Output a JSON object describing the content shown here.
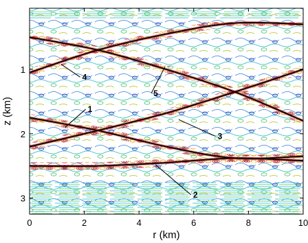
{
  "chart_data": {
    "type": "contour",
    "title": "",
    "xlabel": "r (km)",
    "ylabel": "z (km)",
    "xlim": [
      0,
      10
    ],
    "ylim": [
      3.25,
      0.05
    ],
    "y_reversed": true,
    "xticks": [
      0,
      2,
      4,
      6,
      8,
      10
    ],
    "yticks": [
      1,
      2,
      3
    ],
    "grid": false,
    "legend": "none",
    "contour_palette": [
      "#0b2aa8",
      "#2f7fe0",
      "#1cb7c9",
      "#3fbf5a",
      "#b0c21e",
      "#e39a1a",
      "#d2281e",
      "#8c0c0c"
    ],
    "curves": [
      {
        "id": "c1",
        "points": [
          [
            0,
            0.5
          ],
          [
            2.5,
            0.7
          ],
          [
            5,
            1.0
          ],
          [
            7.5,
            1.35
          ],
          [
            10,
            1.8
          ]
        ]
      },
      {
        "id": "c2",
        "points": [
          [
            0,
            1.05
          ],
          [
            2.5,
            0.7
          ],
          [
            5,
            0.45
          ],
          [
            7.5,
            0.28
          ],
          [
            10,
            0.3
          ]
        ]
      },
      {
        "id": "c3",
        "points": [
          [
            0,
            2.2
          ],
          [
            2.5,
            1.95
          ],
          [
            5,
            1.68
          ],
          [
            7.5,
            1.35
          ],
          [
            10,
            1.0
          ]
        ]
      },
      {
        "id": "c4",
        "points": [
          [
            0,
            1.75
          ],
          [
            2.5,
            1.95
          ],
          [
            5,
            2.2
          ],
          [
            7.5,
            2.38
          ],
          [
            10,
            2.35
          ]
        ]
      },
      {
        "id": "c5",
        "points": [
          [
            0,
            2.5
          ],
          [
            2.5,
            2.5
          ],
          [
            5,
            2.45
          ],
          [
            7.5,
            2.38
          ],
          [
            10,
            2.42
          ]
        ]
      }
    ],
    "annotations": [
      {
        "text": "1",
        "label_at": [
          2.05,
          1.62
        ],
        "arrow_to": [
          1.3,
          1.9
        ]
      },
      {
        "text": "2",
        "label_at": [
          5.9,
          2.95
        ],
        "arrow_to": [
          4.6,
          2.48
        ]
      },
      {
        "text": "3",
        "label_at": [
          6.8,
          2.04
        ],
        "arrow_to": [
          5.45,
          1.78
        ]
      },
      {
        "text": "4",
        "label_at": [
          1.85,
          1.12
        ],
        "arrow_to": [
          1.15,
          0.92
        ]
      },
      {
        "text": "5",
        "label_at": [
          4.45,
          1.37
        ],
        "arrow_to": [
          4.95,
          0.96
        ]
      }
    ]
  }
}
